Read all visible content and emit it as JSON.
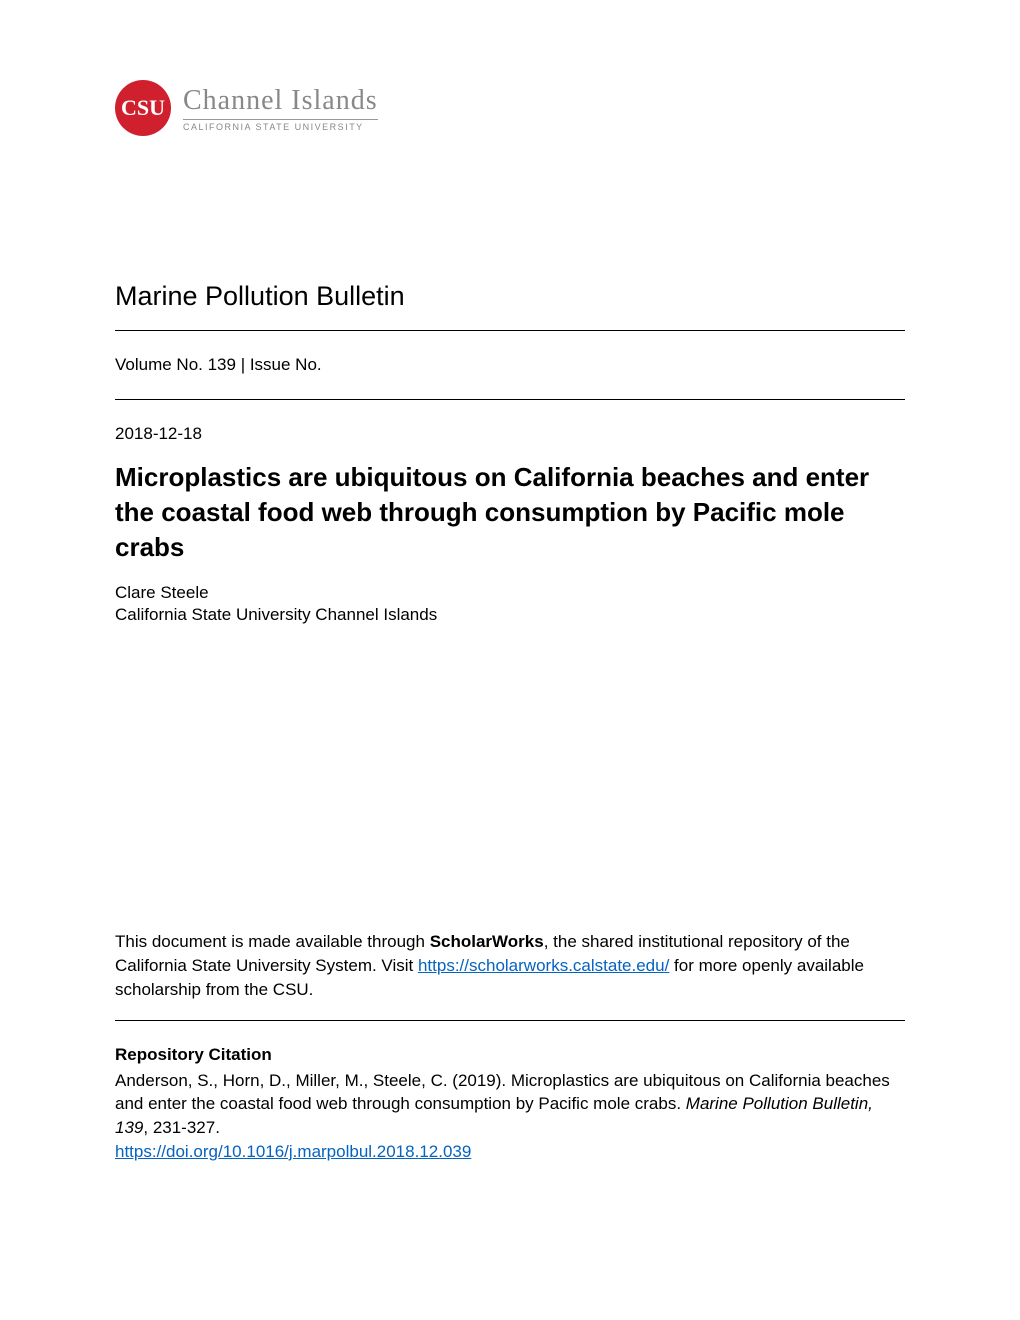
{
  "logo": {
    "badge_text": "CSU",
    "title": "Channel Islands",
    "subtitle": "CALIFORNIA STATE UNIVERSITY",
    "badge_color": "#d0202e"
  },
  "journal": {
    "title": "Marine Pollution Bulletin",
    "volume_issue": "Volume No. 139 | Issue No."
  },
  "article": {
    "date": "2018-12-18",
    "title": "Microplastics are ubiquitous on California beaches and enter the coastal food web through consumption by Pacific mole crabs",
    "author_name": "Clare Steele",
    "author_affiliation": "California State University Channel Islands"
  },
  "availability": {
    "text_before": "This document is made available through ",
    "bold_term": "ScholarWorks",
    "text_middle": ", the shared institutional repository of the California State University System. Visit ",
    "link_url": "https://scholarworks.calstate.edu/",
    "text_after": " for more openly available scholarship from the CSU."
  },
  "citation": {
    "heading": "Repository Citation",
    "text_before": "Anderson, S., Horn, D., Miller, M., Steele, C. (2019). Microplastics are ubiquitous on California beaches and enter the coastal food web through consumption by Pacific mole crabs. ",
    "journal_italic": "Marine Pollution Bulletin, 139",
    "text_after": ", 231-327.",
    "doi_link": "https://doi.org/10.1016/j.marpolbul.2018.12.039"
  },
  "styles": {
    "link_color": "#0563c1",
    "text_color": "#000000",
    "background_color": "#ffffff"
  }
}
